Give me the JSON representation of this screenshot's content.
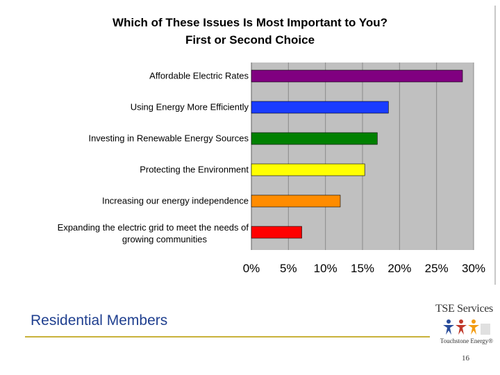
{
  "chart_data": {
    "type": "bar",
    "orientation": "horizontal",
    "title": [
      "Which of These Issues Is Most Important to You?",
      "First or Second Choice"
    ],
    "categories": [
      [
        "Affordable Electric Rates"
      ],
      [
        "Using Energy More Efficiently"
      ],
      [
        "Investing in Renewable Energy Sources"
      ],
      [
        "Protecting the Environment"
      ],
      [
        "Increasing our energy independence"
      ],
      [
        "Expanding the electric grid to meet the needs of",
        "growing communities"
      ]
    ],
    "values": [
      28.5,
      18.5,
      17,
      15.3,
      12,
      6.8
    ],
    "colors": [
      "#800080",
      "#1a3cff",
      "#008000",
      "#ffff00",
      "#ff8c00",
      "#ff0000"
    ],
    "xlim": [
      0,
      30
    ],
    "tick_values": [
      0,
      5,
      10,
      15,
      20,
      25,
      30
    ],
    "tick_labels": [
      "0%",
      "5%",
      "10%",
      "15%",
      "20%",
      "25%",
      "30%"
    ],
    "grid": true,
    "plot_background": "#c0c0c0",
    "legend": "none"
  },
  "footer": {
    "title": "Residential Members",
    "page_number": "16"
  },
  "logo": {
    "brand": "TSE Services",
    "tagline": "Touchstone Energy®"
  }
}
